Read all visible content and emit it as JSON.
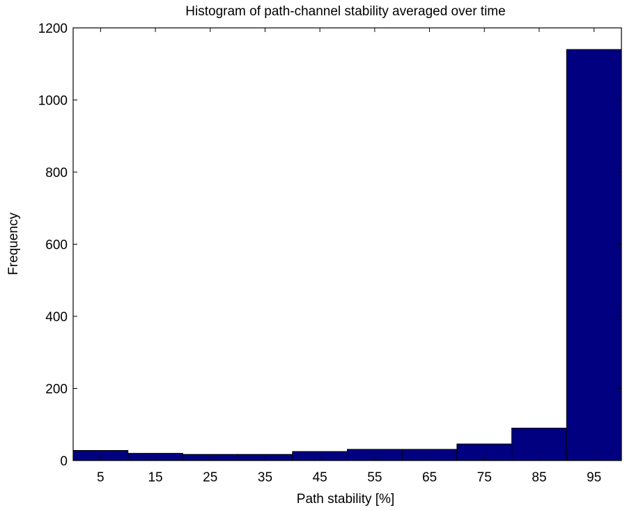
{
  "chart_data": {
    "type": "bar",
    "title": "Histogram of path-channel stability averaged over time",
    "xlabel": "Path stability [%]",
    "ylabel": "Frequency",
    "categories": [
      "5",
      "15",
      "25",
      "35",
      "45",
      "55",
      "65",
      "75",
      "85",
      "95"
    ],
    "bin_centers": [
      5,
      15,
      25,
      35,
      45,
      55,
      65,
      75,
      85,
      95
    ],
    "values": [
      28,
      20,
      17,
      17,
      25,
      31,
      31,
      46,
      90,
      1140
    ],
    "xlim": [
      0,
      100
    ],
    "ylim": [
      0,
      1200
    ],
    "yticks": [
      0,
      200,
      400,
      600,
      800,
      1000,
      1200
    ],
    "bar_color": "#000080",
    "grid": false,
    "legend": "none"
  }
}
